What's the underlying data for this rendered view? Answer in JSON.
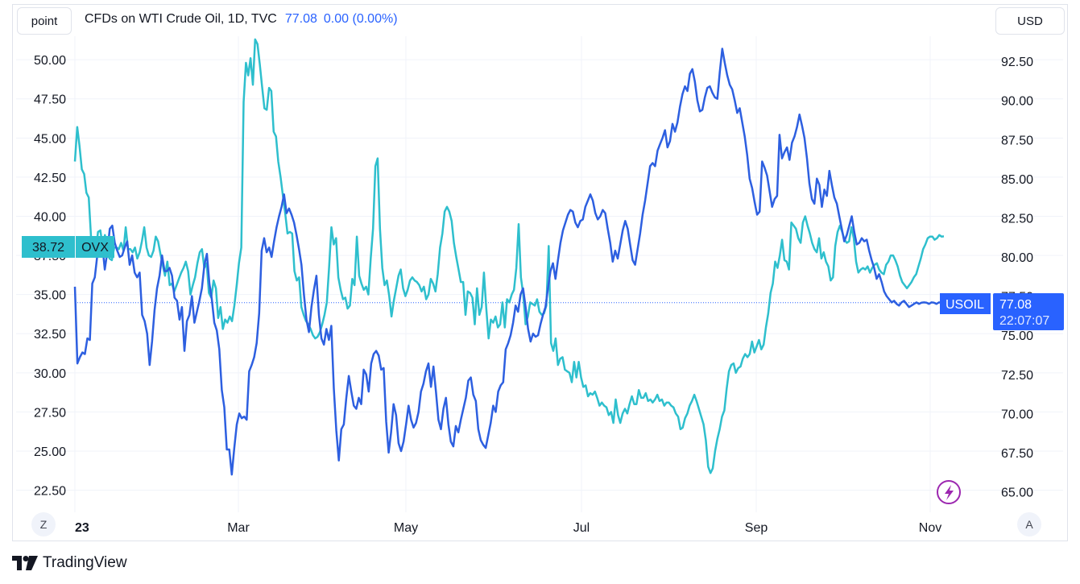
{
  "header": {
    "unit_label": "point",
    "symbol_title": "CFDs on WTI Crude Oil, 1D, TVC",
    "last_value": "77.08",
    "change": "0.00 (0.00%)",
    "currency_label": "USD"
  },
  "footer": {
    "zoom_label": "Z",
    "auto_label": "A",
    "brand": "TradingView"
  },
  "colors": {
    "usoil": "#2d5fe0",
    "ovx": "#2ebfcd",
    "grid": "#f0f3fa",
    "price_line": "#2962ff"
  },
  "badges": {
    "ovx_value": "38.72",
    "ovx_name": "OVX",
    "usoil_name": "USOIL",
    "usoil_value": "77.08",
    "usoil_time": "22:07:07"
  },
  "chart_data": {
    "type": "line",
    "x_ticks": [
      "23",
      "Mar",
      "May",
      "Jul",
      "Sep",
      "Nov"
    ],
    "left_axis": {
      "ticks": [
        "22.50",
        "25.00",
        "27.50",
        "30.00",
        "32.50",
        "35.00",
        "37.50",
        "40.00",
        "42.50",
        "45.00",
        "47.50",
        "50.00"
      ],
      "range": [
        21.5,
        51.5
      ]
    },
    "right_axis": {
      "ticks": [
        "65.00",
        "67.50",
        "70.00",
        "72.50",
        "75.00",
        "77.50",
        "80.00",
        "82.50",
        "85.00",
        "87.50",
        "90.00",
        "92.50"
      ],
      "range": [
        64.1,
        94.1
      ]
    },
    "series": [
      {
        "name": "OVX",
        "axis": "left",
        "values": [
          43.5,
          45.7,
          44.5,
          43.0,
          42.7,
          41.5,
          41.2,
          38.6,
          38.0,
          37.7,
          39.0,
          39.1,
          38.1,
          38.8,
          37.9,
          37.3,
          37.2,
          38.0,
          38.0,
          37.9,
          38.3,
          37.8,
          39.3,
          37.9,
          37.9,
          37.7,
          38.0,
          37.3,
          37.7,
          38.4,
          39.3,
          38.0,
          37.5,
          37.4,
          37.8,
          38.7,
          38.4,
          37.6,
          36.9,
          36.2,
          37.1,
          35.6,
          35.7,
          35.2,
          35.6,
          36.0,
          36.4,
          36.7,
          37.1,
          36.5,
          35.0,
          35.6,
          36.1,
          37.0,
          37.7,
          37.9,
          36.7,
          37.0,
          35.1,
          34.8,
          35.9,
          35.4,
          33.5,
          34.2,
          32.8,
          33.4,
          33.2,
          33.6,
          33.3,
          34.3,
          35.6,
          37.0,
          38.0,
          47.3,
          49.8,
          49.0,
          50.1,
          48.4,
          51.3,
          51.0,
          49.7,
          48.3,
          46.9,
          46.8,
          48.2,
          48.0,
          45.4,
          45.1,
          43.5,
          42.5,
          41.3,
          40.2,
          38.9,
          39.0,
          38.9,
          36.5,
          35.9,
          36.1,
          34.2,
          33.7,
          33.3,
          33.1,
          32.8,
          32.4,
          32.2,
          32.3,
          32.6,
          33.1,
          33.7,
          34.5,
          36.8,
          39.3,
          38.2,
          38.6,
          36.1,
          35.3,
          34.7,
          34.8,
          34.1,
          34.3,
          36.0,
          35.6,
          38.7,
          36.2,
          35.7,
          35.3,
          35.5,
          35.0,
          37.3,
          39.2,
          43.2,
          43.7,
          39.2,
          36.7,
          35.6,
          35.9,
          34.9,
          33.6,
          34.6,
          35.4,
          36.2,
          36.6,
          35.4,
          34.9,
          35.3,
          35.9,
          36.1,
          35.9,
          35.8,
          35.6,
          35.2,
          35.5,
          34.7,
          35.0,
          36.0,
          35.7,
          35.2,
          36.3,
          38.0,
          38.9,
          40.3,
          40.6,
          40.3,
          39.7,
          38.3,
          37.4,
          36.6,
          35.8,
          35.8,
          33.7,
          35.2,
          35.1,
          34.8,
          33.1,
          35.4,
          33.7,
          34.2,
          36.4,
          34.1,
          32.2,
          33.4,
          33.2,
          33.6,
          32.9,
          33.1,
          34.5,
          32.9,
          34.7,
          34.5,
          35.0,
          35.3,
          36.7,
          39.5,
          36.1,
          35.0,
          33.1,
          33.6,
          34.5,
          34.4,
          34.3,
          34.7,
          33.9,
          33.7,
          33.8,
          34.3,
          38.1,
          31.9,
          31.4,
          32.2,
          30.5,
          30.9,
          31.0,
          30.2,
          30.1,
          30.0,
          29.4,
          30.7,
          29.7,
          30.7,
          29.7,
          29.1,
          29.2,
          28.5,
          28.7,
          28.6,
          28.8,
          28.4,
          27.9,
          28.1,
          27.9,
          27.8,
          27.3,
          27.5,
          26.8,
          28.3,
          27.3,
          26.8,
          27.4,
          27.7,
          27.4,
          28.0,
          28.5,
          28.0,
          28.0,
          28.9,
          28.4,
          28.4,
          28.7,
          28.2,
          28.3,
          28.1,
          28.3,
          28.6,
          28.2,
          28.3,
          27.9,
          28.1,
          28.1,
          27.9,
          27.8,
          27.4,
          27.2,
          26.4,
          26.5,
          27.1,
          27.4,
          27.9,
          28.2,
          28.6,
          28.2,
          27.7,
          27.2,
          26.7,
          25.7,
          24.0,
          23.6,
          23.9,
          25.0,
          25.8,
          26.4,
          27.2,
          27.6,
          29.0,
          30.1,
          30.5,
          30.6,
          30.0,
          30.3,
          30.4,
          30.9,
          31.2,
          31.0,
          31.2,
          32.0,
          31.3,
          31.7,
          32.1,
          31.5,
          31.8,
          32.9,
          33.8,
          35.1,
          35.7,
          37.1,
          36.7,
          37.5,
          38.5,
          37.2,
          37.1,
          36.6,
          39.6,
          39.4,
          39.2,
          38.6,
          38.3,
          39.6,
          40.0,
          39.4,
          38.9,
          38.3,
          37.9,
          37.7,
          38.6,
          37.3,
          37.7,
          37.1,
          36.8,
          35.9,
          36.1,
          38.1,
          39.0,
          39.4,
          39.0,
          38.5,
          38.3,
          38.4,
          39.3,
          38.6,
          37.1,
          36.4,
          36.6,
          36.7,
          36.6,
          36.8,
          36.4,
          36.7,
          36.9,
          37.0,
          36.6,
          36.4,
          36.3,
          36.9,
          37.1,
          37.5,
          37.5,
          37.2,
          36.8,
          36.2,
          35.8,
          35.6,
          35.4,
          35.6,
          35.8,
          36.1,
          36.3,
          36.8,
          37.3,
          37.9,
          38.2,
          38.6,
          38.7,
          38.7,
          38.5,
          38.6,
          38.8,
          38.7,
          38.72
        ]
      },
      {
        "name": "USOIL",
        "axis": "right",
        "values": [
          78.1,
          73.2,
          73.6,
          73.9,
          73.8,
          74.8,
          74.7,
          78.3,
          78.7,
          80.1,
          81.2,
          80.8,
          79.2,
          80.3,
          81.8,
          82.0,
          80.9,
          80.4,
          80.0,
          80.1,
          80.6,
          81.0,
          79.5,
          80.1,
          79.0,
          78.7,
          79.0,
          76.3,
          75.9,
          75.1,
          73.1,
          74.6,
          76.6,
          78.0,
          78.8,
          80.1,
          79.1,
          79.1,
          79.3,
          78.8,
          77.4,
          77.2,
          76.0,
          76.8,
          74.0,
          75.9,
          76.3,
          77.5,
          75.8,
          76.5,
          77.2,
          78.0,
          79.5,
          80.2,
          78.3,
          77.3,
          75.8,
          75.3,
          74.1,
          71.5,
          70.4,
          67.7,
          67.7,
          66.1,
          67.8,
          69.3,
          70.0,
          69.7,
          69.8,
          69.6,
          72.7,
          73.1,
          73.6,
          74.5,
          76.4,
          80.4,
          81.2,
          80.3,
          80.6,
          80.0,
          81.0,
          81.9,
          82.6,
          83.2,
          84.0,
          82.8,
          83.1,
          82.7,
          82.2,
          81.4,
          80.5,
          79.5,
          77.6,
          76.0,
          75.2,
          76.8,
          77.9,
          78.8,
          76.3,
          74.8,
          74.4,
          75.4,
          74.7,
          75.6,
          71.6,
          68.9,
          67.0,
          69.0,
          69.3,
          71.0,
          72.4,
          71.4,
          70.5,
          70.3,
          71.0,
          70.6,
          72.8,
          72.5,
          71.4,
          73.2,
          73.8,
          74.0,
          73.7,
          72.8,
          72.9,
          69.5,
          67.5,
          68.8,
          70.6,
          69.9,
          68.1,
          67.6,
          68.2,
          69.3,
          70.5,
          69.6,
          69.1,
          69.4,
          70.1,
          71.4,
          71.9,
          72.7,
          73.2,
          71.7,
          73.0,
          71.4,
          69.6,
          69.0,
          70.3,
          71.0,
          69.3,
          68.2,
          67.9,
          69.2,
          68.8,
          69.6,
          70.3,
          71.0,
          72.1,
          72.3,
          71.2,
          70.8,
          69.0,
          68.3,
          68.0,
          67.8,
          68.6,
          69.4,
          70.5,
          70.1,
          71.4,
          71.8,
          72.0,
          74.1,
          74.5,
          75.0,
          75.8,
          76.9,
          76.5,
          77.6,
          78.0,
          76.8,
          75.4,
          74.6,
          75.1,
          74.9,
          75.0,
          75.7,
          76.3,
          76.8,
          78.0,
          79.1,
          79.6,
          78.6,
          79.8,
          80.9,
          81.7,
          82.2,
          82.7,
          83.0,
          82.9,
          82.2,
          81.9,
          82.3,
          82.4,
          83.2,
          83.6,
          84.0,
          83.6,
          82.8,
          82.4,
          82.6,
          83.0,
          82.8,
          81.8,
          80.9,
          79.7,
          80.4,
          79.9,
          80.8,
          81.7,
          82.3,
          81.8,
          80.8,
          79.8,
          79.5,
          80.5,
          81.5,
          82.7,
          83.6,
          84.7,
          85.8,
          86.0,
          85.8,
          86.8,
          87.2,
          87.6,
          88.1,
          87.0,
          87.4,
          88.5,
          88.0,
          88.6,
          89.6,
          90.4,
          90.9,
          90.6,
          91.7,
          92.0,
          91.2,
          90.0,
          89.3,
          89.4,
          90.2,
          90.8,
          90.9,
          90.5,
          90.2,
          90.1,
          91.8,
          93.3,
          92.4,
          91.6,
          91.0,
          90.7,
          90.0,
          89.2,
          89.5,
          88.6,
          87.7,
          86.5,
          85.0,
          84.4,
          83.5,
          82.7,
          82.9,
          86.1,
          85.7,
          85.2,
          84.2,
          83.2,
          83.7,
          83.9,
          87.8,
          86.3,
          86.7,
          87.0,
          86.2,
          87.3,
          87.7,
          88.3,
          89.1,
          88.4,
          87.6,
          86.3,
          84.7,
          83.7,
          83.4,
          85.0,
          84.6,
          83.2,
          84.3,
          83.9,
          85.5,
          84.6,
          83.8,
          83.4,
          82.6,
          81.8,
          81.0,
          81.4,
          82.0,
          82.6,
          81.6,
          80.8,
          80.9,
          81.2,
          81.0,
          81.1,
          80.4,
          79.8,
          79.3,
          78.6,
          78.9,
          78.4,
          77.8,
          77.5,
          77.3,
          77.1,
          77.2,
          77.0,
          76.9,
          77.1,
          77.2,
          77.0,
          76.8,
          76.9,
          77.0,
          77.1,
          77.0,
          77.08,
          77.1,
          77.08,
          77.0,
          77.1,
          77.08,
          77.0,
          77.1,
          77.08,
          77.08
        ]
      }
    ]
  }
}
